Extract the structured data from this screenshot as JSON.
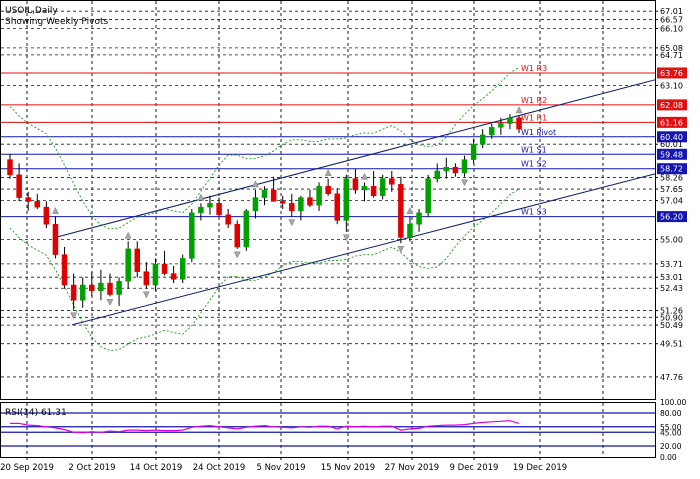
{
  "chart_data": {
    "type": "candlestick",
    "symbol_title": "USOIL,Daily",
    "subtitle": "Showing Weekly Pivots",
    "colors": {
      "bull": "#00a000",
      "bear": "#e00000",
      "channel": "#0b1c6e",
      "envelope": "#1a9a1a",
      "pivot_line": "#1515b0",
      "resistance_line": "#e01010",
      "grid": "#1a1a2e",
      "rsi": "#e000e0",
      "rsi_level": "#1515b0"
    },
    "ylim": [
      46.6,
      67.6
    ],
    "y_ticks": [
      "67.01",
      "66.57",
      "66.10",
      "65.08",
      "64.71",
      "63.10",
      "60.01",
      "58.26",
      "57.65",
      "57.04",
      "55.00",
      "53.71",
      "53.01",
      "52.43",
      "51.26",
      "50.90",
      "50.49",
      "49.51",
      "47.76"
    ],
    "x_ticks": [
      "20 Sep 2019",
      "2 Oct 2019",
      "14 Oct 2019",
      "24 Oct 2019",
      "5 Nov 2019",
      "15 Nov 2019",
      "27 Nov 2019",
      "9 Dec 2019",
      "19 Dec 2019"
    ],
    "pivot_levels": [
      {
        "label": "W1 R3",
        "value": 63.76,
        "value_text": "63.76",
        "color": "#e01010"
      },
      {
        "label": "W1 R2",
        "value": 62.08,
        "value_text": "62.08",
        "color": "#e01010"
      },
      {
        "label": "W1 R1",
        "value": 61.16,
        "value_text": "61.16",
        "color": "#e01010"
      },
      {
        "label": "W1 Pivot",
        "value": 60.4,
        "value_text": "60.40",
        "color": "#1515b0"
      },
      {
        "label": "W1 S1",
        "value": 59.48,
        "value_text": "59.48",
        "color": "#1515b0"
      },
      {
        "label": "W1 S2",
        "value": 58.72,
        "value_text": "58.72",
        "color": "#1515b0"
      },
      {
        "label": "W1 S3",
        "value": 56.2,
        "value_text": "56.20",
        "color": "#1515b0"
      }
    ],
    "candles": [
      [
        59.2,
        59.5,
        58.2,
        58.4
      ],
      [
        58.4,
        59.0,
        57.0,
        57.2
      ],
      [
        57.2,
        57.5,
        56.5,
        57.0
      ],
      [
        57.0,
        57.4,
        56.6,
        56.7
      ],
      [
        56.7,
        57.0,
        55.6,
        55.8
      ],
      [
        55.8,
        56.2,
        54.0,
        54.2
      ],
      [
        54.2,
        54.6,
        52.4,
        52.6
      ],
      [
        52.6,
        53.2,
        51.3,
        51.8
      ],
      [
        51.8,
        53.0,
        51.4,
        52.6
      ],
      [
        52.6,
        53.3,
        52.0,
        52.3
      ],
      [
        52.3,
        53.4,
        51.8,
        52.7
      ],
      [
        52.7,
        53.2,
        52.0,
        52.1
      ],
      [
        52.1,
        53.0,
        51.5,
        52.8
      ],
      [
        52.8,
        54.9,
        52.4,
        54.5
      ],
      [
        54.5,
        54.9,
        53.0,
        53.3
      ],
      [
        53.3,
        53.8,
        52.4,
        52.6
      ],
      [
        52.6,
        54.0,
        52.3,
        53.7
      ],
      [
        53.7,
        54.4,
        53.1,
        53.2
      ],
      [
        53.2,
        53.6,
        52.7,
        52.9
      ],
      [
        52.9,
        54.2,
        52.7,
        54.0
      ],
      [
        54.0,
        56.6,
        53.8,
        56.4
      ],
      [
        56.4,
        56.9,
        56.0,
        56.7
      ],
      [
        56.7,
        57.3,
        56.3,
        56.9
      ],
      [
        56.9,
        57.2,
        56.2,
        56.3
      ],
      [
        56.3,
        56.6,
        55.6,
        55.8
      ],
      [
        55.8,
        56.0,
        54.5,
        54.6
      ],
      [
        54.6,
        56.6,
        54.4,
        56.5
      ],
      [
        56.5,
        57.6,
        56.1,
        57.2
      ],
      [
        57.2,
        57.8,
        56.8,
        57.6
      ],
      [
        57.6,
        58.3,
        57.0,
        57.0
      ],
      [
        57.0,
        57.3,
        56.6,
        56.9
      ],
      [
        56.9,
        57.4,
        56.2,
        56.5
      ],
      [
        56.5,
        57.3,
        56.0,
        57.2
      ],
      [
        57.2,
        57.6,
        56.7,
        56.8
      ],
      [
        56.8,
        58.0,
        56.5,
        57.8
      ],
      [
        57.8,
        58.2,
        57.3,
        57.4
      ],
      [
        57.4,
        57.7,
        55.8,
        56.0
      ],
      [
        56.0,
        58.4,
        55.4,
        58.2
      ],
      [
        58.2,
        58.7,
        57.4,
        57.6
      ],
      [
        57.6,
        58.0,
        57.0,
        57.8
      ],
      [
        57.8,
        58.6,
        57.2,
        57.3
      ],
      [
        57.3,
        58.4,
        57.1,
        58.2
      ],
      [
        58.2,
        58.6,
        57.5,
        57.9
      ],
      [
        57.9,
        58.3,
        54.8,
        55.1
      ],
      [
        55.1,
        56.2,
        54.9,
        55.8
      ],
      [
        55.8,
        56.6,
        55.4,
        56.4
      ],
      [
        56.4,
        58.4,
        56.2,
        58.2
      ],
      [
        58.2,
        59.0,
        58.0,
        58.6
      ],
      [
        58.6,
        59.3,
        58.2,
        58.8
      ],
      [
        58.8,
        59.0,
        58.3,
        58.5
      ],
      [
        58.5,
        59.4,
        58.3,
        59.2
      ],
      [
        59.2,
        60.3,
        59.0,
        60.0
      ],
      [
        60.0,
        60.8,
        59.8,
        60.5
      ],
      [
        60.5,
        61.1,
        60.3,
        60.9
      ],
      [
        60.9,
        61.4,
        60.5,
        61.1
      ],
      [
        61.1,
        61.6,
        60.8,
        61.4
      ],
      [
        61.4,
        61.5,
        60.6,
        60.8
      ]
    ],
    "rsi": {
      "label": "RSI(14) 61.31",
      "value": 61.31,
      "levels": [
        "100.00",
        "80.00",
        "55.00",
        "45.00",
        "20.00",
        "0.00"
      ],
      "series": [
        61,
        61,
        58,
        57,
        55,
        53,
        50,
        45,
        44,
        46,
        45,
        47,
        46,
        49,
        49,
        48,
        49,
        48,
        48,
        49,
        54,
        56,
        57,
        55,
        53,
        51,
        54,
        56,
        57,
        55,
        54,
        53,
        55,
        54,
        56,
        56,
        51,
        56,
        55,
        56,
        55,
        56,
        56,
        49,
        51,
        52,
        56,
        57,
        58,
        58,
        59,
        61,
        63,
        64,
        65,
        66,
        61
      ]
    }
  }
}
